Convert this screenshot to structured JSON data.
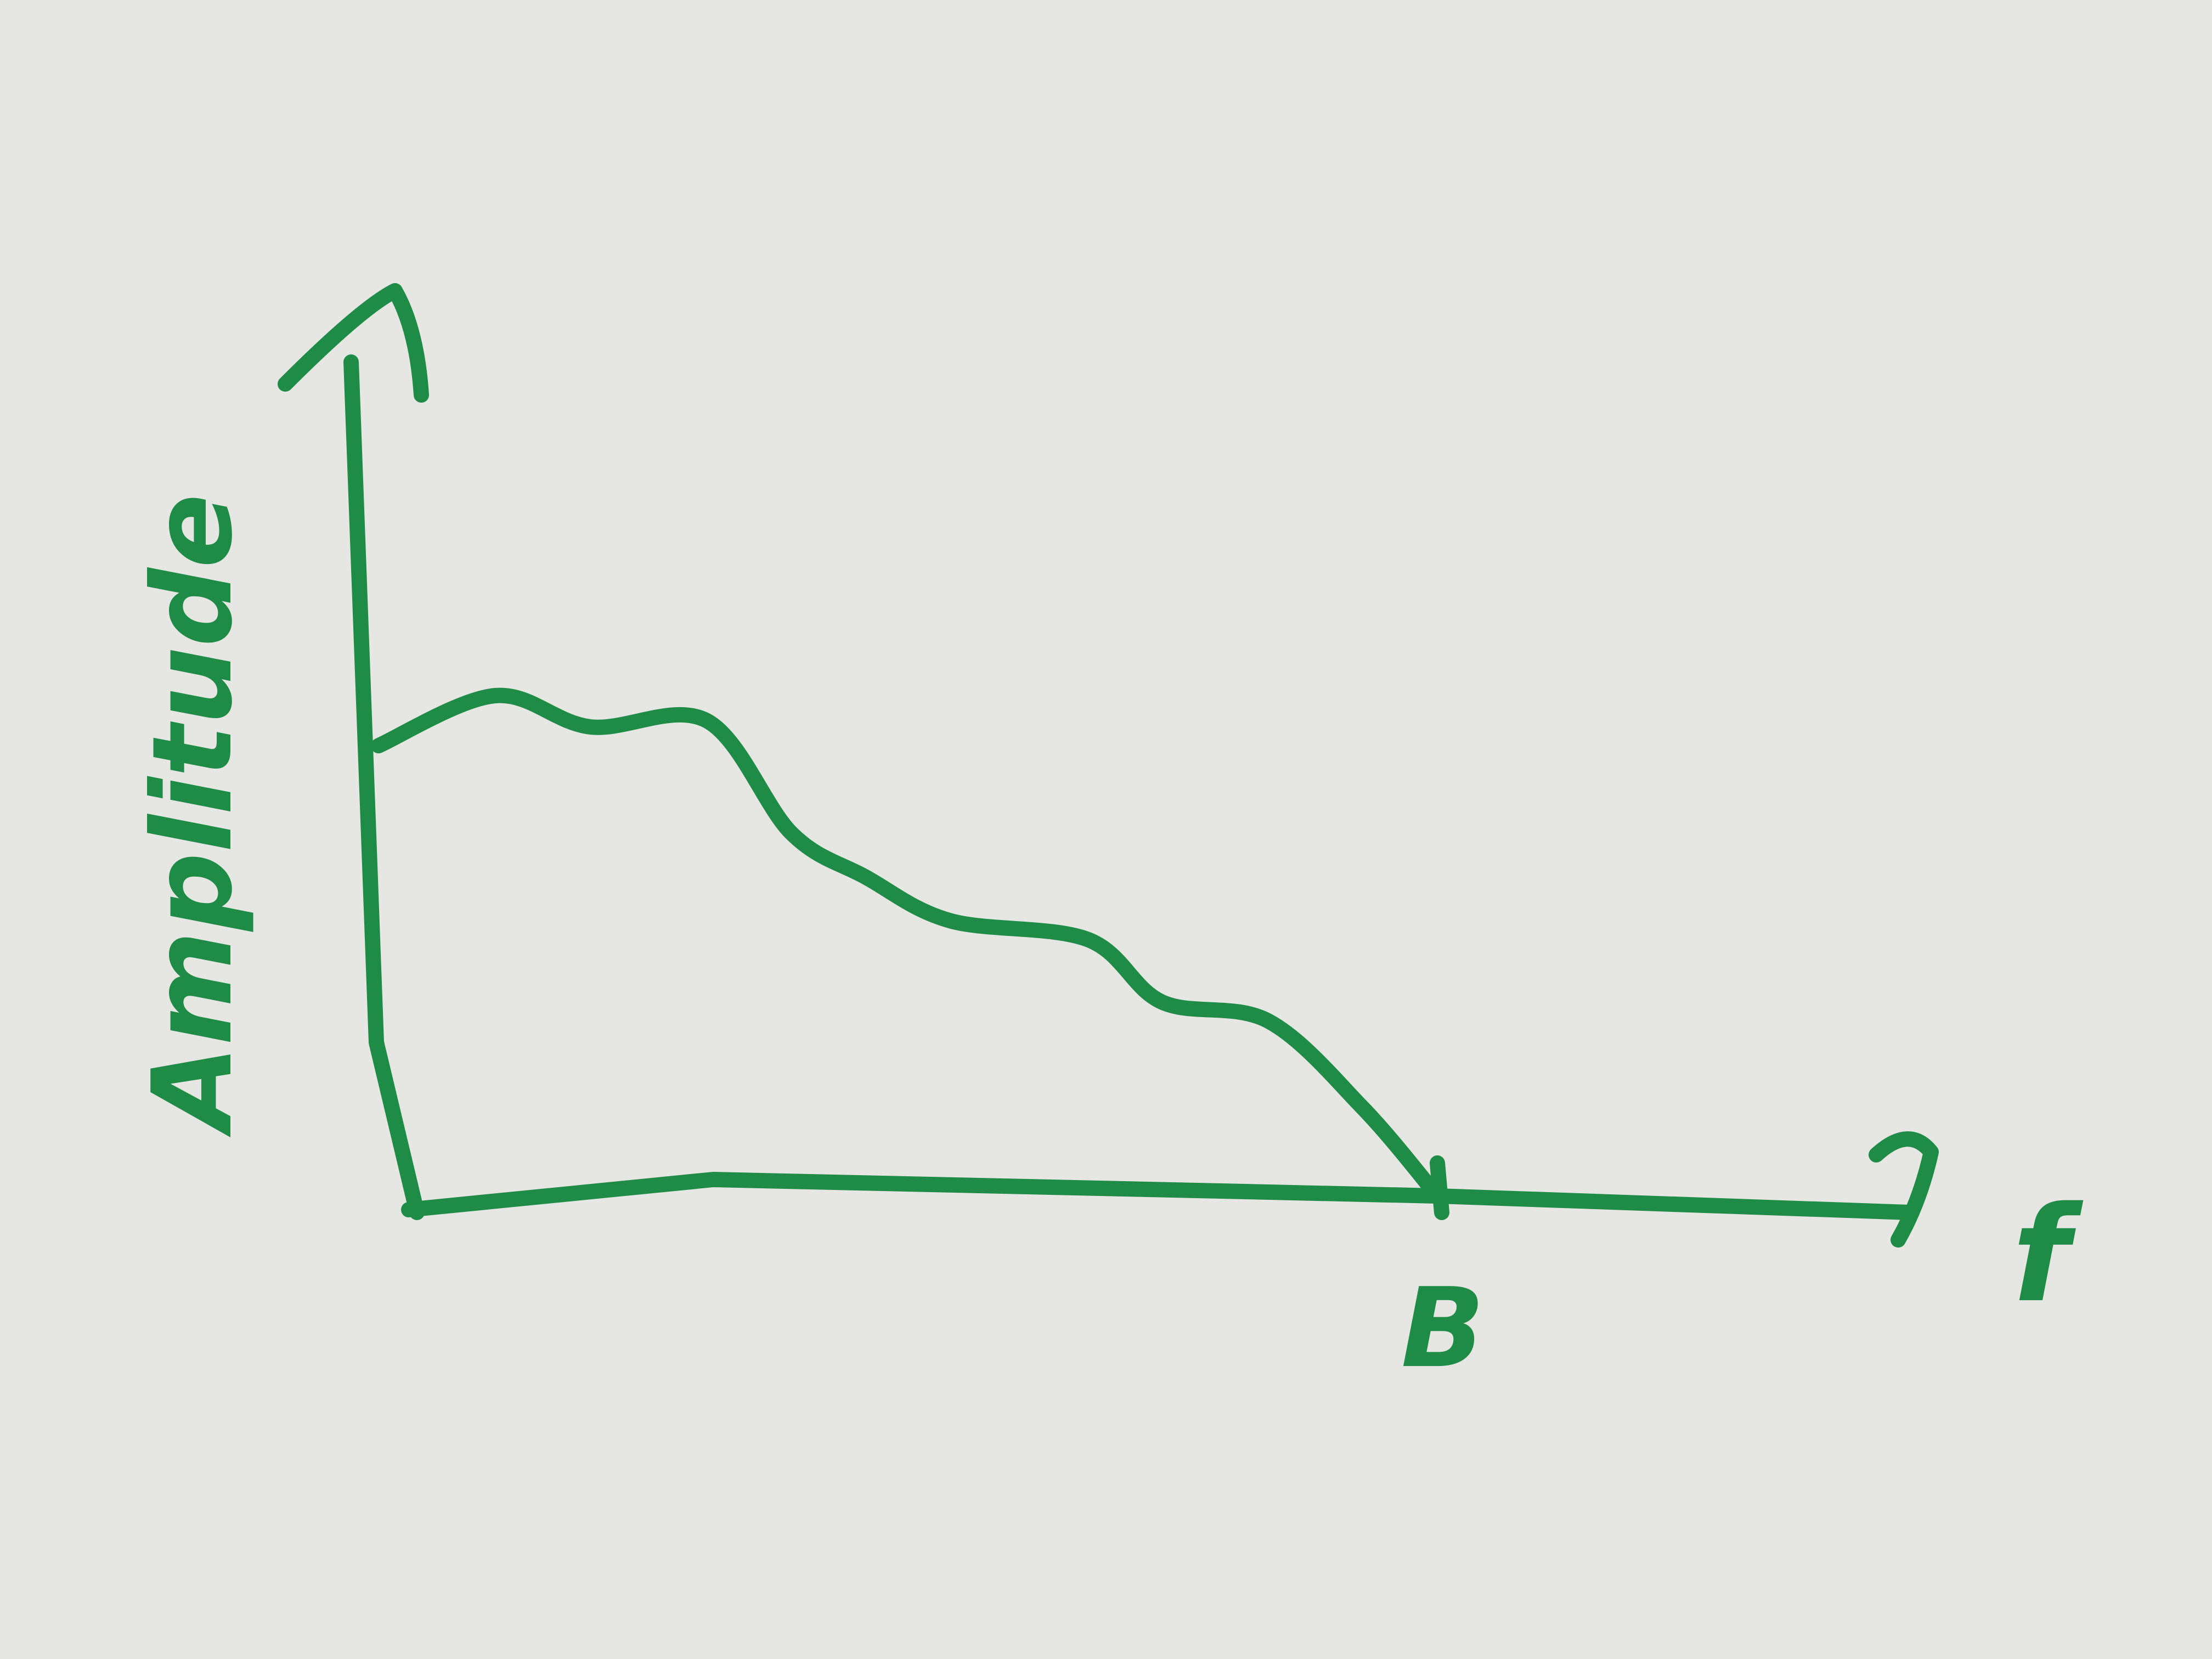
{
  "chart_data": {
    "type": "line",
    "title": "",
    "xlabel": "f",
    "ylabel": "Amplitude",
    "x_tick_labels": [
      "B"
    ],
    "legend": "none",
    "grid": false,
    "ink_color": "#1e8c46",
    "paper_color": "#e6e6e2",
    "series": [
      {
        "name": "",
        "points": [
          {
            "x": 0.0,
            "y": 0.72
          },
          {
            "x": 0.11,
            "y": 0.8
          },
          {
            "x": 0.2,
            "y": 0.75
          },
          {
            "x": 0.31,
            "y": 0.76
          },
          {
            "x": 0.39,
            "y": 0.58
          },
          {
            "x": 0.46,
            "y": 0.51
          },
          {
            "x": 0.54,
            "y": 0.44
          },
          {
            "x": 0.67,
            "y": 0.41
          },
          {
            "x": 0.74,
            "y": 0.31
          },
          {
            "x": 0.84,
            "y": 0.28
          },
          {
            "x": 0.93,
            "y": 0.14
          },
          {
            "x": 1.0,
            "y": 0.0
          }
        ]
      }
    ]
  }
}
